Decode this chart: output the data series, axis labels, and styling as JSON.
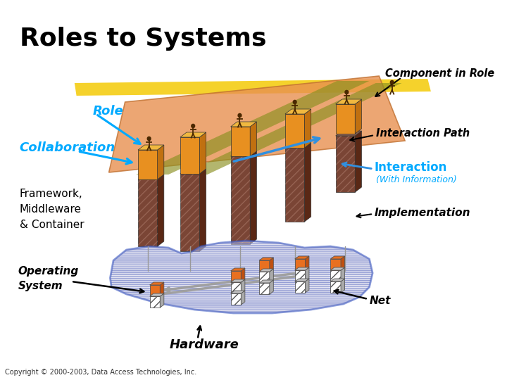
{
  "title": "Roles to Systems",
  "title_fontsize": 26,
  "title_fontweight": "bold",
  "background_color": "#ffffff",
  "labels": {
    "role": "Role",
    "collaboration": "Collaboration",
    "component_in_role": "Component in Role",
    "interaction_path": "Interaction Path",
    "interaction": "Interaction",
    "with_information": "(With Information)",
    "implementation": "Implementation",
    "framework": "Framework,\nMiddleware\n& Container",
    "operating_system": "Operating\nSystem",
    "net": "Net",
    "hardware": "Hardware",
    "copyright": "Copyright © 2000-2003, Data Access Technologies, Inc."
  },
  "colors": {
    "cyan_label": "#00AAFF",
    "platform_fill": "#E89050",
    "platform_edge": "#C07030",
    "yellow_stripe": "#F5D020",
    "green_stripe": "#8A9020",
    "gold_top": "#F0B840",
    "gold_front": "#E89020",
    "gold_side": "#C07010",
    "dark_top": "#8B6050",
    "dark_front": "#7A4535",
    "dark_side": "#5A2815",
    "os_fill": "#D0D0E8",
    "os_border": "#3050C0",
    "orange_box": "#E87020",
    "hatch_box_front": "#ffffff",
    "hatch_box_side": "#C0C0C0",
    "hatch_box_top": "#E0E0E0",
    "gray_line": "#909090",
    "blue_arrow": "#3090E0",
    "black": "#000000",
    "white": "#ffffff"
  }
}
